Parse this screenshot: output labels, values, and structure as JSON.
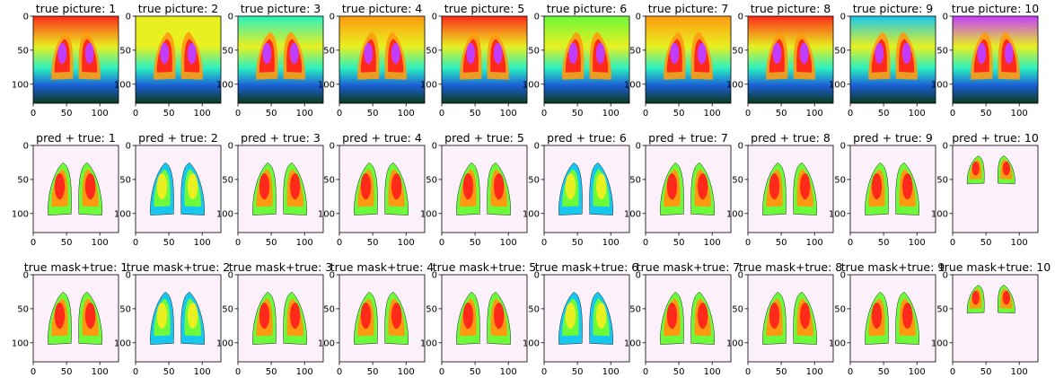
{
  "rows": [
    {
      "prefix": "true picture: ",
      "kind": "xray"
    },
    {
      "prefix": "pred + true: ",
      "kind": "mask"
    },
    {
      "prefix": "true mask+true: ",
      "kind": "mask"
    }
  ],
  "columns": [
    "1",
    "2",
    "3",
    "4",
    "5",
    "6",
    "7",
    "8",
    "9",
    "10"
  ],
  "axis": {
    "xticks": [
      "0",
      "50",
      "100"
    ],
    "yticks": [
      "0",
      "50",
      "100"
    ],
    "xlim": [
      0,
      128
    ],
    "ylim": [
      128,
      0
    ]
  },
  "colors": {
    "mask_background": "#fcf0fa",
    "heatmap_palette": [
      "#0b3d18",
      "#1b5cd6",
      "#16c8f0",
      "#2af0c0",
      "#6dfa3a",
      "#e8f020",
      "#ff9a10",
      "#ff2a1a",
      "#c23cff",
      "#f6a8f4"
    ]
  },
  "chart_data": {
    "type": "heatmap",
    "grid": "3 rows x 10 columns",
    "panel_titles": [
      [
        "true picture: 1",
        "true picture: 2",
        "true picture: 3",
        "true picture: 4",
        "true picture: 5",
        "true picture: 6",
        "true picture: 7",
        "true picture: 8",
        "true picture: 9",
        "true picture: 10"
      ],
      [
        "pred + true: 1",
        "pred + true: 2",
        "pred + true: 3",
        "pred + true: 4",
        "pred + true: 5",
        "pred + true: 6",
        "pred + true: 7",
        "pred + true: 8",
        "pred + true: 9",
        "pred + true: 10"
      ],
      [
        "true mask+true: 1",
        "true mask+true: 2",
        "true mask+true: 3",
        "true mask+true: 4",
        "true mask+true: 5",
        "true mask+true: 6",
        "true mask+true: 7",
        "true mask+true: 8",
        "true mask+true: 9",
        "true mask+true: 10"
      ]
    ],
    "x_ticks": [
      0,
      50,
      100
    ],
    "y_ticks": [
      0,
      50,
      100
    ],
    "xlim": [
      0,
      128
    ],
    "ylim": [
      128,
      0
    ]
  }
}
